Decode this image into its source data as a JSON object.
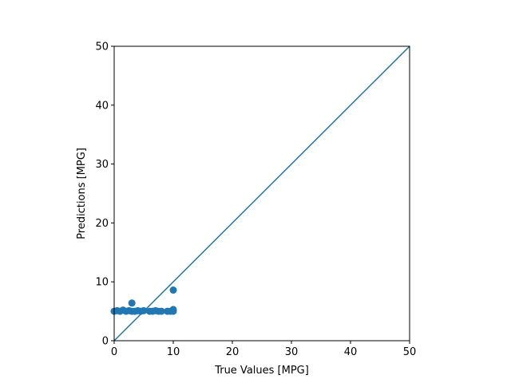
{
  "chart_data": {
    "type": "scatter",
    "xlabel": "True Values [MPG]",
    "ylabel": "Predictions [MPG]",
    "xlim": [
      0,
      50
    ],
    "ylim": [
      0,
      50
    ],
    "xticks": [
      0,
      10,
      20,
      30,
      40,
      50
    ],
    "yticks": [
      0,
      10,
      20,
      30,
      40,
      50
    ],
    "xtick_labels": [
      "0",
      "10",
      "20",
      "30",
      "40",
      "50"
    ],
    "ytick_labels": [
      "0",
      "10",
      "20",
      "30",
      "40",
      "50"
    ],
    "grid": false,
    "colors": {
      "series": "#1f77b4",
      "axes": "#000000"
    },
    "reference_line": {
      "x": [
        0,
        50
      ],
      "y": [
        0,
        50
      ]
    },
    "series": [
      {
        "points": [
          {
            "x": 0.0,
            "y": 5.0
          },
          {
            "x": 0.5,
            "y": 5.1
          },
          {
            "x": 1.0,
            "y": 5.0
          },
          {
            "x": 1.5,
            "y": 5.2
          },
          {
            "x": 2.0,
            "y": 5.0
          },
          {
            "x": 2.5,
            "y": 5.1
          },
          {
            "x": 3.0,
            "y": 6.4
          },
          {
            "x": 3.0,
            "y": 5.0
          },
          {
            "x": 3.5,
            "y": 5.0
          },
          {
            "x": 4.0,
            "y": 5.1
          },
          {
            "x": 4.5,
            "y": 5.0
          },
          {
            "x": 5.0,
            "y": 5.1
          },
          {
            "x": 6.0,
            "y": 5.0
          },
          {
            "x": 6.5,
            "y": 5.0
          },
          {
            "x": 7.0,
            "y": 5.1
          },
          {
            "x": 7.5,
            "y": 5.0
          },
          {
            "x": 8.0,
            "y": 5.0
          },
          {
            "x": 9.0,
            "y": 5.0
          },
          {
            "x": 9.5,
            "y": 5.0
          },
          {
            "x": 10.0,
            "y": 8.6
          },
          {
            "x": 10.0,
            "y": 5.3
          },
          {
            "x": 10.0,
            "y": 5.0
          }
        ]
      }
    ]
  }
}
